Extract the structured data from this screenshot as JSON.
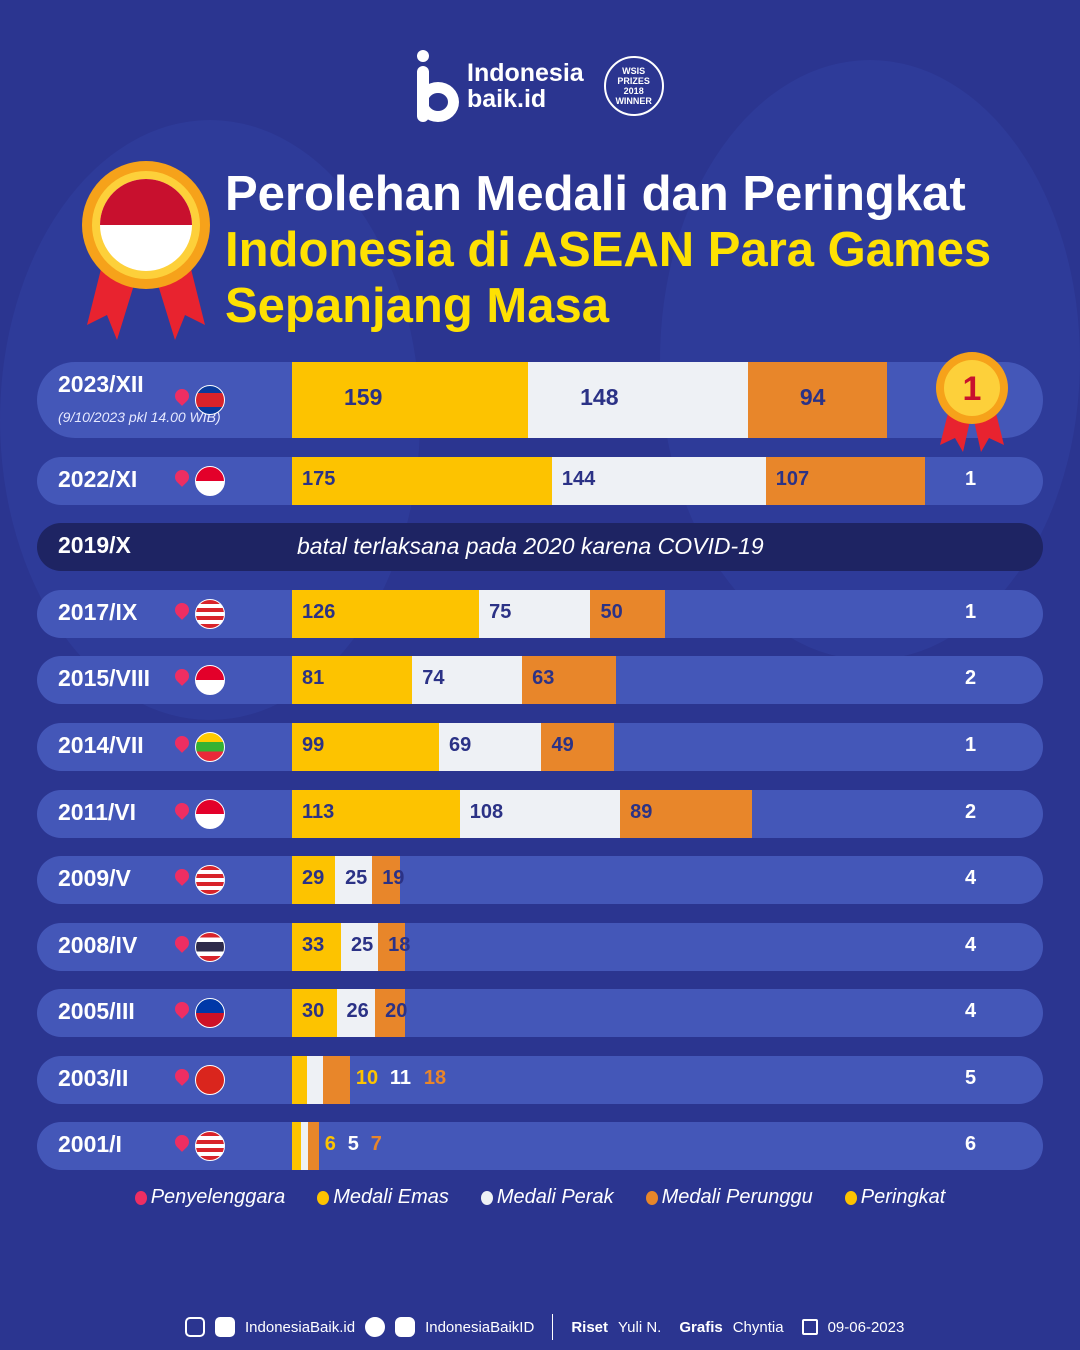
{
  "header": {
    "logo_line1": "Indonesia",
    "logo_line2": "baik.id",
    "badge_lines": [
      "WSIS",
      "PRIZES",
      "2018",
      "WINNER"
    ]
  },
  "title": {
    "line1": "Perolehan Medali dan Peringkat",
    "line2": "Indonesia di ASEAN Para Games",
    "line3": "Sepanjang Masa"
  },
  "colors": {
    "gold": "#fdc300",
    "silver": "#eef1f5",
    "bronze": "#e8862a",
    "pill": "#4457b8",
    "background": "#2b3590"
  },
  "chart_data": {
    "type": "bar",
    "orientation": "horizontal",
    "stacked": true,
    "title": "Perolehan Medali dan Peringkat Indonesia di ASEAN Para Games Sepanjang Masa",
    "series_names": [
      "Medali Emas",
      "Medali Perak",
      "Medali Perunggu"
    ],
    "rows": [
      {
        "edition": "2023/XII",
        "note": "(9/10/2023 pkl 14.00 WIB)",
        "host": "Kamboja",
        "gold": 159,
        "silver": 148,
        "bronze": 94,
        "rank": "1"
      },
      {
        "edition": "2022/XI",
        "host": "Indonesia",
        "gold": 175,
        "silver": 144,
        "bronze": 107,
        "rank": "1"
      },
      {
        "edition": "2019/X",
        "cancelled": "batal terlaksana pada 2020 karena COVID-19"
      },
      {
        "edition": "2017/IX",
        "host": "Malaysia",
        "gold": 126,
        "silver": 75,
        "bronze": 50,
        "rank": "1"
      },
      {
        "edition": "2015/VIII",
        "host": "Singapura",
        "gold": 81,
        "silver": 74,
        "bronze": 63,
        "rank": "2"
      },
      {
        "edition": "2014/VII",
        "host": "Myanmar",
        "gold": 99,
        "silver": 69,
        "bronze": 49,
        "rank": "1"
      },
      {
        "edition": "2011/VI",
        "host": "Indonesia",
        "gold": 113,
        "silver": 108,
        "bronze": 89,
        "rank": "2"
      },
      {
        "edition": "2009/V",
        "host": "Malaysia",
        "gold": 29,
        "silver": 25,
        "bronze": 19,
        "rank": "4"
      },
      {
        "edition": "2008/IV",
        "host": "Thailand",
        "gold": 33,
        "silver": 25,
        "bronze": 18,
        "rank": "4"
      },
      {
        "edition": "2005/III",
        "host": "Filipina",
        "gold": 30,
        "silver": 26,
        "bronze": 20,
        "rank": "4"
      },
      {
        "edition": "2003/II",
        "host": "Vietnam",
        "gold": 10,
        "silver": 11,
        "bronze": 18,
        "rank": "5"
      },
      {
        "edition": "2001/I",
        "host": "Malaysia",
        "gold": 6,
        "silver": 5,
        "bronze": 7,
        "rank": "6"
      }
    ]
  },
  "legend": [
    "Penyelenggara",
    "Medali Emas",
    "Medali Perak",
    "Medali Perunggu",
    "Peringkat"
  ],
  "footer": {
    "social1": "IndonesiaBaik.id",
    "social2": "IndonesiaBaikID",
    "riset_label": "Riset",
    "riset_name": "Yuli N.",
    "grafis_label": "Grafis",
    "grafis_name": "Chyntia",
    "date": "09-06-2023"
  }
}
